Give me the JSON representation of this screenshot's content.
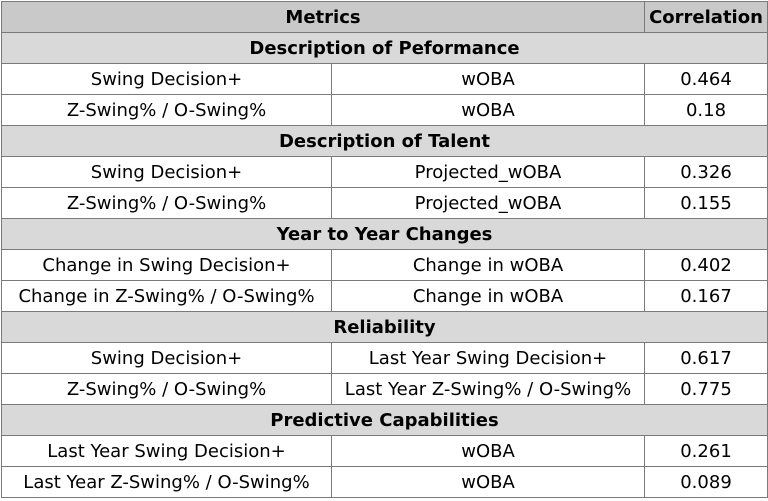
{
  "header": {
    "metrics": "Metrics",
    "correlation": "Correlation"
  },
  "sections": [
    {
      "title": "Description of Peformance",
      "rows": [
        {
          "metric": "Swing Decision+",
          "target": "wOBA",
          "correlation": "0.464"
        },
        {
          "metric": "Z-Swing% / O-Swing%",
          "target": "wOBA",
          "correlation": "0.18"
        }
      ]
    },
    {
      "title": "Description of Talent",
      "rows": [
        {
          "metric": "Swing Decision+",
          "target": "Projected_wOBA",
          "correlation": "0.326"
        },
        {
          "metric": "Z-Swing% / O-Swing%",
          "target": "Projected_wOBA",
          "correlation": "0.155"
        }
      ]
    },
    {
      "title": "Year to Year Changes",
      "rows": [
        {
          "metric": "Change in Swing Decision+",
          "target": "Change in wOBA",
          "correlation": "0.402"
        },
        {
          "metric": "Change in Z-Swing% / O-Swing%",
          "target": "Change in wOBA",
          "correlation": "0.167"
        }
      ]
    },
    {
      "title": "Reliability",
      "rows": [
        {
          "metric": "Swing Decision+",
          "target": "Last Year Swing Decision+",
          "correlation": "0.617"
        },
        {
          "metric": "Z-Swing% / O-Swing%",
          "target": "Last Year Z-Swing% / O-Swing%",
          "correlation": "0.775"
        }
      ]
    },
    {
      "title": "Predictive Capabilities",
      "rows": [
        {
          "metric": "Last Year Swing Decision+",
          "target": "wOBA",
          "correlation": "0.261"
        },
        {
          "metric": "Last Year Z-Swing% / O-Swing%",
          "target": "wOBA",
          "correlation": "0.089"
        }
      ]
    }
  ]
}
